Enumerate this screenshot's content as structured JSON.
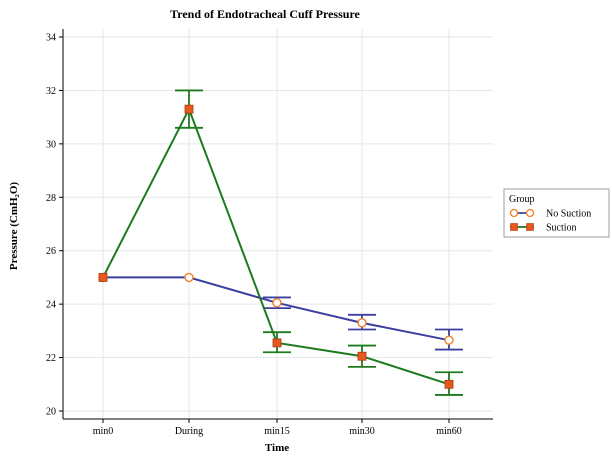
{
  "chart_data": {
    "type": "line",
    "title": "Trend of Endotracheal Cuff Pressure",
    "xlabel": "Time",
    "ylabel": "Pressure (CmH₂O)",
    "categories": [
      "min0",
      "During",
      "min15",
      "min30",
      "min60"
    ],
    "ylim": [
      19.7,
      34.3
    ],
    "yticks": [
      20,
      22,
      24,
      26,
      28,
      30,
      32,
      34
    ],
    "grid": true,
    "legend_title": "Group",
    "legend_position": "right",
    "series": [
      {
        "name": "No Suction",
        "color": "#3b3f9f",
        "marker": "circle-open",
        "marker_color": "#f07f2a",
        "values": [
          25.0,
          25.0,
          24.05,
          23.3,
          22.65
        ],
        "err_low": [
          null,
          null,
          23.85,
          23.05,
          22.3
        ],
        "err_high": [
          null,
          null,
          24.25,
          23.6,
          23.05
        ]
      },
      {
        "name": "Suction",
        "color": "#1e7a1e",
        "marker": "square-filled",
        "marker_color": "#e8571e",
        "values": [
          25.0,
          31.3,
          22.55,
          22.05,
          21.0
        ],
        "err_low": [
          null,
          30.6,
          22.2,
          21.65,
          20.6
        ],
        "err_high": [
          null,
          32.0,
          22.95,
          22.45,
          21.45
        ]
      }
    ]
  }
}
